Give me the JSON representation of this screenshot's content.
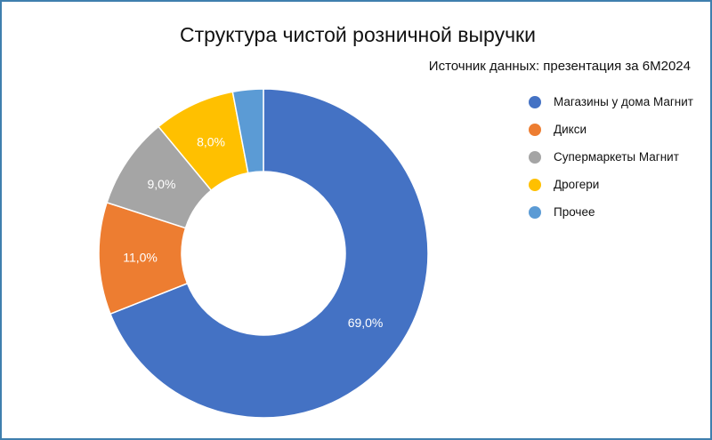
{
  "chart_data": {
    "type": "pie",
    "donut": true,
    "title": "Структура чистой розничной выручки",
    "subtitle": "Источник данных: презентация за 6М2024",
    "legend_position": "right",
    "categories": [
      "Магазины у дома Магнит",
      "Дикси",
      "Супермаркеты Магнит",
      "Дрогери",
      "Прочее"
    ],
    "values": [
      69.0,
      11.0,
      9.0,
      8.0,
      3.0
    ],
    "data_labels": [
      "69,0%",
      "11,0%",
      "9,0%",
      "8,0%",
      ""
    ],
    "colors": [
      "#4472c4",
      "#ed7d31",
      "#a5a5a5",
      "#ffc000",
      "#5b9bd5"
    ]
  }
}
